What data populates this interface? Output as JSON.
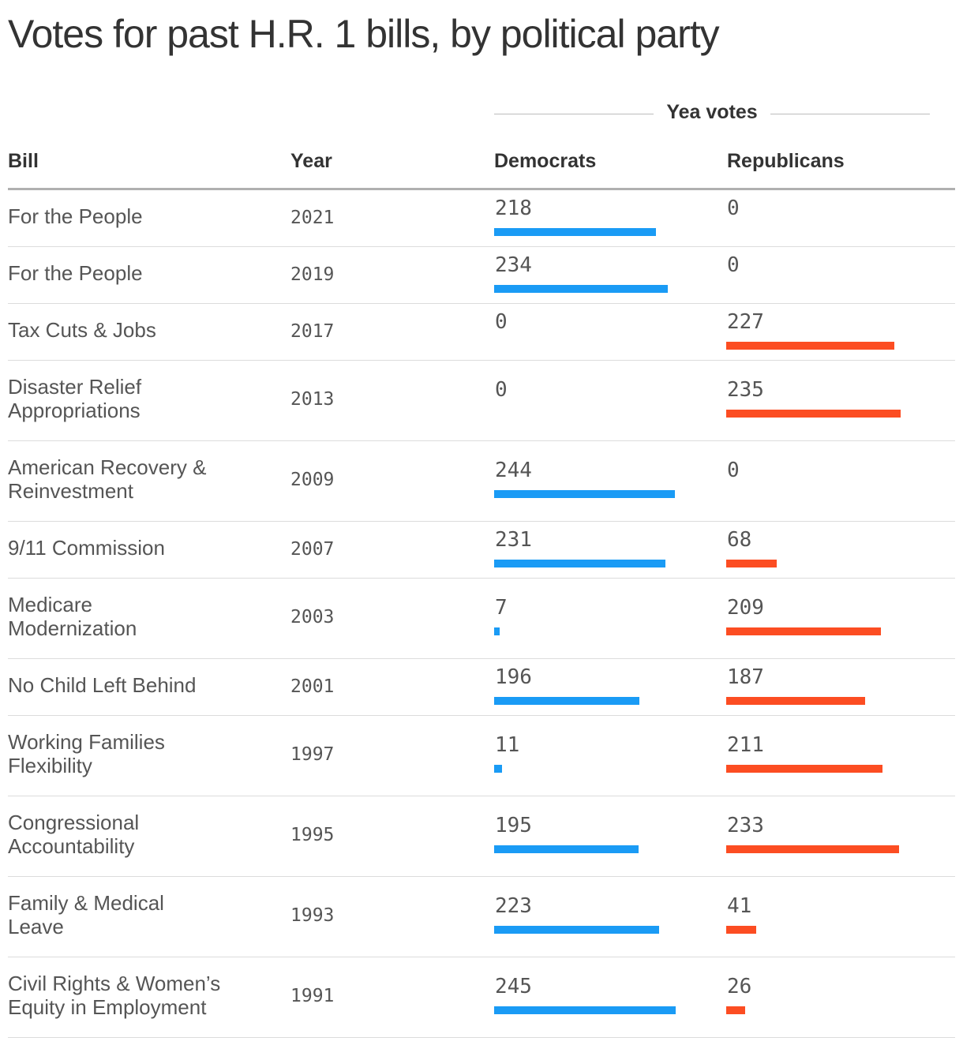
{
  "title": "Votes for past H.R. 1 bills, by political party",
  "header": {
    "group_label": "Yea votes",
    "bill": "Bill",
    "year": "Year",
    "democrats": "Democrats",
    "republicans": "Republicans"
  },
  "colors": {
    "democrats": "#1a9bf5",
    "republicans": "#fc4d22"
  },
  "chart_data": {
    "type": "table",
    "title": "Votes for past H.R. 1 bills, by political party",
    "columns": [
      "Bill",
      "Year",
      "Democrats",
      "Republicans"
    ],
    "group_label": "Yea votes",
    "max_value": 245,
    "rows": [
      {
        "bill_lines": [
          "For the People"
        ],
        "year": "2021",
        "dem": 218,
        "rep": 0
      },
      {
        "bill_lines": [
          "For the People"
        ],
        "year": "2019",
        "dem": 234,
        "rep": 0
      },
      {
        "bill_lines": [
          "Tax Cuts & Jobs"
        ],
        "year": "2017",
        "dem": 0,
        "rep": 227
      },
      {
        "bill_lines": [
          "Disaster Relief",
          "Appropriations"
        ],
        "year": "2013",
        "dem": 0,
        "rep": 235
      },
      {
        "bill_lines": [
          "American Recovery &",
          "Reinvestment"
        ],
        "year": "2009",
        "dem": 244,
        "rep": 0
      },
      {
        "bill_lines": [
          "9/11 Commission"
        ],
        "year": "2007",
        "dem": 231,
        "rep": 68
      },
      {
        "bill_lines": [
          "Medicare",
          "Modernization"
        ],
        "year": "2003",
        "dem": 7,
        "rep": 209
      },
      {
        "bill_lines": [
          "No Child Left Behind"
        ],
        "year": "2001",
        "dem": 196,
        "rep": 187
      },
      {
        "bill_lines": [
          "Working Families",
          "Flexibility"
        ],
        "year": "1997",
        "dem": 11,
        "rep": 211
      },
      {
        "bill_lines": [
          "Congressional",
          "Accountability"
        ],
        "year": "1995",
        "dem": 195,
        "rep": 233
      },
      {
        "bill_lines": [
          "Family & Medical",
          "Leave"
        ],
        "year": "1993",
        "dem": 223,
        "rep": 41
      },
      {
        "bill_lines": [
          "Civil Rights & Women’s",
          "Equity in Employment"
        ],
        "year": "1991",
        "dem": 245,
        "rep": 26
      }
    ]
  }
}
